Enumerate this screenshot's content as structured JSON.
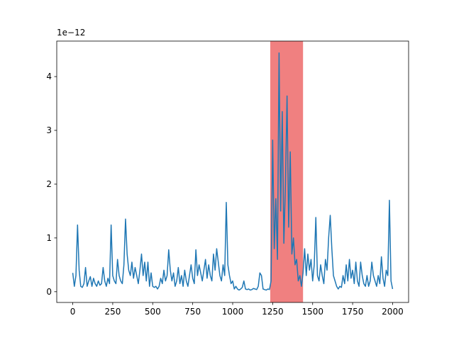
{
  "chart_data": {
    "type": "line",
    "offset_text": "1e−12",
    "x": [
      0,
      10,
      20,
      30,
      40,
      50,
      60,
      70,
      80,
      90,
      100,
      110,
      120,
      130,
      140,
      150,
      160,
      170,
      180,
      190,
      200,
      210,
      220,
      230,
      240,
      250,
      260,
      270,
      280,
      290,
      300,
      310,
      320,
      330,
      340,
      350,
      360,
      370,
      380,
      390,
      400,
      410,
      420,
      430,
      440,
      450,
      460,
      470,
      480,
      490,
      500,
      510,
      520,
      530,
      540,
      550,
      560,
      570,
      580,
      590,
      600,
      610,
      620,
      630,
      640,
      650,
      660,
      670,
      680,
      690,
      700,
      710,
      720,
      730,
      740,
      750,
      760,
      770,
      780,
      790,
      800,
      810,
      820,
      830,
      840,
      850,
      860,
      870,
      880,
      890,
      900,
      910,
      920,
      930,
      940,
      950,
      960,
      970,
      980,
      990,
      1000,
      1010,
      1020,
      1030,
      1040,
      1050,
      1060,
      1070,
      1080,
      1090,
      1100,
      1110,
      1120,
      1130,
      1140,
      1150,
      1160,
      1170,
      1180,
      1190,
      1200,
      1210,
      1220,
      1230,
      1240,
      1250,
      1260,
      1270,
      1280,
      1290,
      1300,
      1310,
      1320,
      1330,
      1340,
      1350,
      1360,
      1370,
      1380,
      1390,
      1400,
      1410,
      1420,
      1430,
      1440,
      1450,
      1460,
      1470,
      1480,
      1490,
      1500,
      1510,
      1520,
      1530,
      1540,
      1550,
      1560,
      1570,
      1580,
      1590,
      1600,
      1610,
      1620,
      1630,
      1640,
      1650,
      1660,
      1670,
      1680,
      1690,
      1700,
      1710,
      1720,
      1730,
      1740,
      1750,
      1760,
      1770,
      1780,
      1790,
      1800,
      1810,
      1820,
      1830,
      1840,
      1850,
      1860,
      1870,
      1880,
      1890,
      1900,
      1910,
      1920,
      1930,
      1940,
      1950,
      1960,
      1970,
      1980,
      1990,
      2000
    ],
    "series": [
      {
        "color": "#1f77b4",
        "values": [
          0.35,
          0.1,
          0.3,
          1.24,
          0.4,
          0.1,
          0.08,
          0.15,
          0.45,
          0.1,
          0.2,
          0.28,
          0.1,
          0.25,
          0.15,
          0.1,
          0.2,
          0.12,
          0.15,
          0.45,
          0.2,
          0.1,
          0.25,
          0.15,
          1.24,
          0.3,
          0.2,
          0.15,
          0.6,
          0.3,
          0.2,
          0.15,
          0.5,
          1.35,
          0.7,
          0.4,
          0.3,
          0.55,
          0.25,
          0.45,
          0.3,
          0.15,
          0.4,
          0.7,
          0.3,
          0.55,
          0.2,
          0.55,
          0.1,
          0.35,
          0.1,
          0.08,
          0.1,
          0.05,
          0.1,
          0.25,
          0.15,
          0.4,
          0.2,
          0.3,
          0.78,
          0.4,
          0.2,
          0.35,
          0.1,
          0.2,
          0.45,
          0.15,
          0.3,
          0.1,
          0.4,
          0.2,
          0.1,
          0.3,
          0.5,
          0.25,
          0.15,
          0.78,
          0.3,
          0.5,
          0.35,
          0.2,
          0.4,
          0.6,
          0.25,
          0.5,
          0.3,
          0.2,
          0.7,
          0.4,
          0.8,
          0.55,
          0.3,
          0.2,
          0.5,
          0.3,
          1.66,
          0.5,
          0.3,
          0.15,
          0.2,
          0.05,
          0.1,
          0.05,
          0.03,
          0.05,
          0.08,
          0.2,
          0.05,
          0.04,
          0.05,
          0.03,
          0.04,
          0.06,
          0.05,
          0.04,
          0.1,
          0.35,
          0.3,
          0.05,
          0.04,
          0.03,
          0.05,
          0.04,
          0.2,
          2.82,
          0.8,
          1.73,
          0.6,
          4.44,
          1.5,
          3.35,
          0.9,
          2.0,
          3.64,
          1.2,
          2.6,
          0.7,
          1.0,
          0.5,
          0.6,
          0.2,
          0.3,
          0.1,
          0.35,
          0.8,
          0.3,
          0.7,
          0.4,
          0.6,
          0.2,
          0.5,
          1.38,
          0.3,
          0.2,
          0.5,
          0.3,
          0.15,
          0.6,
          0.4,
          1.0,
          1.42,
          0.8,
          0.3,
          0.2,
          0.1,
          0.05,
          0.1,
          0.08,
          0.3,
          0.15,
          0.5,
          0.2,
          0.6,
          0.25,
          0.4,
          0.15,
          0.55,
          0.2,
          0.1,
          0.55,
          0.3,
          0.15,
          0.1,
          0.3,
          0.1,
          0.2,
          0.55,
          0.3,
          0.2,
          0.1,
          0.3,
          0.15,
          0.65,
          0.25,
          0.1,
          0.4,
          0.3,
          1.7,
          0.2,
          0.05
        ]
      }
    ],
    "highlight": [
      1235,
      1440
    ],
    "highlight_color": "#f08080",
    "xlim": [
      -100,
      2100
    ],
    "xticks": [
      0,
      250,
      500,
      750,
      1000,
      1250,
      1500,
      1750,
      2000
    ],
    "ylim": [
      -0.2,
      4.66
    ],
    "yticks": [
      0,
      1,
      2,
      3,
      4
    ]
  }
}
